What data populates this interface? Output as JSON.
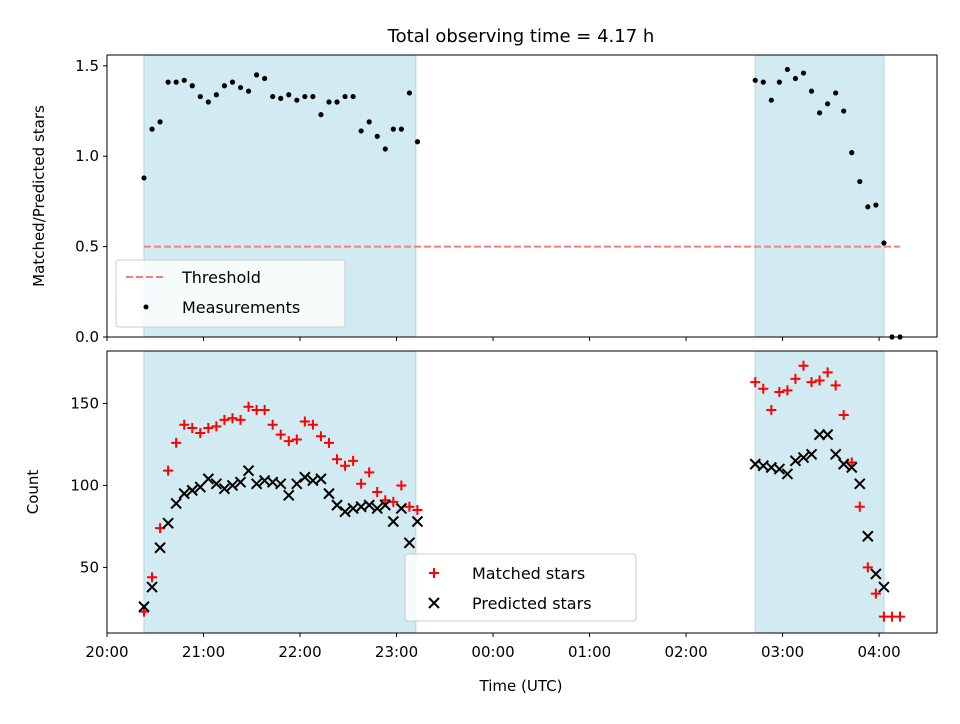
{
  "title": "Total observing time = 4.17 h",
  "x_label": "Time (UTC)",
  "x_ticks": [
    "20:00",
    "21:00",
    "22:00",
    "23:00",
    "00:00",
    "01:00",
    "02:00",
    "03:00",
    "04:00"
  ],
  "colors": {
    "shade": "#add8e6",
    "threshold": "#f08080",
    "matched": "#ff0000",
    "predicted": "#000000"
  },
  "chart_data": [
    {
      "type": "scatter",
      "ylabel": "Matched/Predicted stars",
      "ylim": [
        0,
        1.56
      ],
      "yticks": [
        "0.0",
        "0.5",
        "1.0",
        "1.5"
      ],
      "xlim_hours": [
        20.0,
        28.6
      ],
      "shaded_intervals": [
        [
          "20:23",
          "23:12"
        ],
        [
          "02:43",
          "04:03"
        ]
      ],
      "threshold": {
        "label": "Threshold",
        "y": 0.5,
        "x_start": "20:23",
        "x_end": "04:13"
      },
      "legend": {
        "position": "lower-left",
        "entries": [
          "Threshold",
          "Measurements"
        ]
      },
      "series": [
        {
          "name": "Measurements",
          "marker": "dot",
          "points": [
            [
              "20:23",
              0.88
            ],
            [
              "20:28",
              1.15
            ],
            [
              "20:33",
              1.19
            ],
            [
              "20:38",
              1.41
            ],
            [
              "20:43",
              1.41
            ],
            [
              "20:48",
              1.42
            ],
            [
              "20:53",
              1.39
            ],
            [
              "20:58",
              1.33
            ],
            [
              "21:03",
              1.3
            ],
            [
              "21:08",
              1.34
            ],
            [
              "21:13",
              1.39
            ],
            [
              "21:18",
              1.41
            ],
            [
              "21:23",
              1.38
            ],
            [
              "21:28",
              1.36
            ],
            [
              "21:33",
              1.45
            ],
            [
              "21:38",
              1.43
            ],
            [
              "21:43",
              1.33
            ],
            [
              "21:48",
              1.32
            ],
            [
              "21:53",
              1.34
            ],
            [
              "21:58",
              1.31
            ],
            [
              "22:03",
              1.33
            ],
            [
              "22:08",
              1.33
            ],
            [
              "22:13",
              1.23
            ],
            [
              "22:18",
              1.3
            ],
            [
              "22:23",
              1.3
            ],
            [
              "22:28",
              1.33
            ],
            [
              "22:33",
              1.33
            ],
            [
              "22:38",
              1.14
            ],
            [
              "22:43",
              1.19
            ],
            [
              "22:48",
              1.11
            ],
            [
              "22:53",
              1.04
            ],
            [
              "22:58",
              1.15
            ],
            [
              "23:03",
              1.15
            ],
            [
              "23:08",
              1.35
            ],
            [
              "23:13",
              1.08
            ],
            [
              "02:43",
              1.42
            ],
            [
              "02:48",
              1.41
            ],
            [
              "02:53",
              1.31
            ],
            [
              "02:58",
              1.41
            ],
            [
              "03:03",
              1.48
            ],
            [
              "03:08",
              1.43
            ],
            [
              "03:13",
              1.46
            ],
            [
              "03:18",
              1.36
            ],
            [
              "03:23",
              1.24
            ],
            [
              "03:28",
              1.29
            ],
            [
              "03:33",
              1.35
            ],
            [
              "03:38",
              1.25
            ],
            [
              "03:43",
              1.02
            ],
            [
              "03:48",
              0.86
            ],
            [
              "03:53",
              0.72
            ],
            [
              "03:58",
              0.73
            ],
            [
              "04:03",
              0.52
            ],
            [
              "04:08",
              0.0
            ],
            [
              "04:13",
              0.0
            ]
          ]
        }
      ]
    },
    {
      "type": "scatter",
      "ylabel": "Count",
      "ylim": [
        10,
        182
      ],
      "yticks": [
        "50",
        "100",
        "150"
      ],
      "xlim_hours": [
        20.0,
        28.6
      ],
      "shaded_intervals": [
        [
          "20:23",
          "23:12"
        ],
        [
          "02:43",
          "04:03"
        ]
      ],
      "legend": {
        "position": "lower-center",
        "entries": [
          "Matched stars",
          "Predicted stars"
        ]
      },
      "series": [
        {
          "name": "Matched stars",
          "marker": "plus",
          "points": [
            [
              "20:23",
              23
            ],
            [
              "20:28",
              44
            ],
            [
              "20:33",
              74
            ],
            [
              "20:38",
              109
            ],
            [
              "20:43",
              126
            ],
            [
              "20:48",
              137
            ],
            [
              "20:53",
              135
            ],
            [
              "20:58",
              132
            ],
            [
              "21:03",
              135
            ],
            [
              "21:08",
              136
            ],
            [
              "21:13",
              140
            ],
            [
              "21:18",
              141
            ],
            [
              "21:23",
              140
            ],
            [
              "21:28",
              148
            ],
            [
              "21:33",
              146
            ],
            [
              "21:38",
              146
            ],
            [
              "21:43",
              137
            ],
            [
              "21:48",
              131
            ],
            [
              "21:53",
              127
            ],
            [
              "21:58",
              128
            ],
            [
              "22:03",
              139
            ],
            [
              "22:08",
              137
            ],
            [
              "22:13",
              130
            ],
            [
              "22:18",
              126
            ],
            [
              "22:23",
              116
            ],
            [
              "22:28",
              112
            ],
            [
              "22:33",
              115
            ],
            [
              "22:38",
              101
            ],
            [
              "22:43",
              108
            ],
            [
              "22:48",
              96
            ],
            [
              "22:53",
              91
            ],
            [
              "22:58",
              90
            ],
            [
              "23:03",
              100
            ],
            [
              "23:08",
              87
            ],
            [
              "23:13",
              85
            ],
            [
              "02:43",
              163
            ],
            [
              "02:48",
              159
            ],
            [
              "02:53",
              146
            ],
            [
              "02:58",
              157
            ],
            [
              "03:03",
              158
            ],
            [
              "03:08",
              165
            ],
            [
              "03:13",
              173
            ],
            [
              "03:18",
              163
            ],
            [
              "03:23",
              164
            ],
            [
              "03:28",
              169
            ],
            [
              "03:33",
              161
            ],
            [
              "03:38",
              143
            ],
            [
              "03:43",
              114
            ],
            [
              "03:48",
              87
            ],
            [
              "03:53",
              50
            ],
            [
              "03:58",
              34
            ],
            [
              "04:03",
              20
            ],
            [
              "04:08",
              20
            ],
            [
              "04:13",
              20
            ]
          ]
        },
        {
          "name": "Predicted stars",
          "marker": "x",
          "points": [
            [
              "20:23",
              26
            ],
            [
              "20:28",
              38
            ],
            [
              "20:33",
              62
            ],
            [
              "20:38",
              77
            ],
            [
              "20:43",
              89
            ],
            [
              "20:48",
              95
            ],
            [
              "20:53",
              97
            ],
            [
              "20:58",
              99
            ],
            [
              "21:03",
              104
            ],
            [
              "21:08",
              101
            ],
            [
              "21:13",
              98
            ],
            [
              "21:18",
              100
            ],
            [
              "21:23",
              102
            ],
            [
              "21:28",
              109
            ],
            [
              "21:33",
              101
            ],
            [
              "21:38",
              103
            ],
            [
              "21:43",
              102
            ],
            [
              "21:48",
              101
            ],
            [
              "21:53",
              94
            ],
            [
              "21:58",
              101
            ],
            [
              "22:03",
              105
            ],
            [
              "22:08",
              103
            ],
            [
              "22:13",
              104
            ],
            [
              "22:18",
              95
            ],
            [
              "22:23",
              88
            ],
            [
              "22:28",
              84
            ],
            [
              "22:33",
              86
            ],
            [
              "22:38",
              87
            ],
            [
              "22:43",
              88
            ],
            [
              "22:48",
              86
            ],
            [
              "22:53",
              88
            ],
            [
              "22:58",
              78
            ],
            [
              "23:03",
              86
            ],
            [
              "23:08",
              65
            ],
            [
              "23:13",
              78
            ],
            [
              "02:43",
              113
            ],
            [
              "02:48",
              112
            ],
            [
              "02:53",
              111
            ],
            [
              "02:58",
              110
            ],
            [
              "03:03",
              107
            ],
            [
              "03:08",
              115
            ],
            [
              "03:13",
              117
            ],
            [
              "03:18",
              119
            ],
            [
              "03:23",
              131
            ],
            [
              "03:28",
              131
            ],
            [
              "03:33",
              119
            ],
            [
              "03:38",
              113
            ],
            [
              "03:43",
              111
            ],
            [
              "03:48",
              101
            ],
            [
              "03:53",
              69
            ],
            [
              "03:58",
              46
            ],
            [
              "04:03",
              38
            ]
          ]
        }
      ]
    }
  ]
}
